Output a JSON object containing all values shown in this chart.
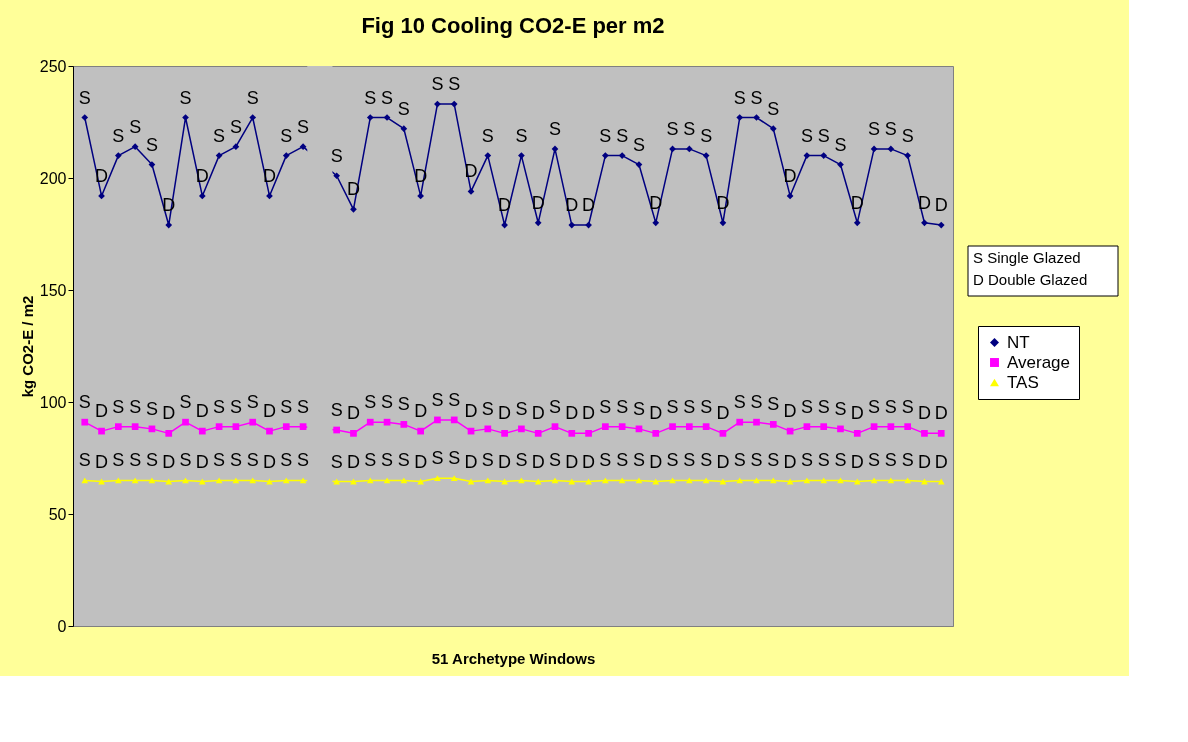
{
  "chart_data": {
    "type": "line",
    "title": "Fig 10 Cooling CO2-E per m2",
    "xlabel": "51 Archetype Windows",
    "ylabel": "kg CO2-E / m2",
    "categories": [
      null,
      null,
      null,
      null,
      null,
      null,
      null,
      null,
      null,
      null,
      null,
      null,
      null,
      null,
      null,
      null,
      null,
      null,
      null,
      null,
      null,
      null,
      null,
      null,
      null,
      null,
      null,
      null,
      null,
      null,
      null,
      null,
      null,
      null,
      null,
      null,
      null,
      null,
      null,
      null,
      null,
      null,
      null,
      null,
      null,
      null,
      null,
      null,
      null,
      null,
      null,
      null
    ],
    "ylim": [
      0,
      250
    ],
    "yticks": [
      0,
      50,
      100,
      150,
      200,
      250
    ],
    "grid": false,
    "legend": "right",
    "tick_labels": "y",
    "annotations": [
      "S  Single Glazed",
      "D Double Glazed"
    ],
    "series": [
      {
        "name": "NT",
        "color": "#000080",
        "marker": "diamond",
        "values": [
          227,
          192,
          210,
          214,
          206,
          179,
          227,
          192,
          210,
          214,
          227,
          192,
          210,
          214,
          null,
          201,
          186,
          227,
          227,
          222,
          192,
          233,
          233,
          194,
          210,
          179,
          210,
          180,
          213,
          179,
          179,
          210,
          210,
          206,
          180,
          213,
          213,
          210,
          180,
          227,
          227,
          222,
          192,
          210,
          210,
          206,
          180,
          213,
          213,
          210,
          180,
          179
        ],
        "value_labels": [
          "S",
          "D",
          "S",
          "S",
          "S",
          "D",
          "S",
          "D",
          "S",
          "S",
          "S",
          "D",
          "S",
          "S",
          null,
          "S",
          "D",
          "S",
          "S",
          "S",
          "D",
          "S",
          "S",
          "D",
          "S",
          "D",
          "S",
          "D",
          "S",
          "D",
          "D",
          "S",
          "S",
          "S",
          "D",
          "S",
          "S",
          "S",
          "D",
          "S",
          "S",
          "S",
          "D",
          "S",
          "S",
          "S",
          "D",
          "S",
          "S",
          "S",
          "D",
          "D"
        ]
      },
      {
        "name": "Average",
        "color": "#ff00ff",
        "marker": "square",
        "values": [
          91,
          87,
          89,
          89,
          88,
          86,
          91,
          87,
          89,
          89,
          91,
          87,
          89,
          89,
          null,
          87.5,
          86,
          91,
          91,
          90,
          87,
          92,
          92,
          87,
          88,
          86,
          88,
          86,
          89,
          86,
          86,
          89,
          89,
          88,
          86,
          89,
          89,
          89,
          86,
          91,
          91,
          90,
          87,
          89,
          89,
          88,
          86,
          89,
          89,
          89,
          86,
          86
        ],
        "value_labels": [
          "S",
          "D",
          "S",
          "S",
          "S",
          "D",
          "S",
          "D",
          "S",
          "S",
          "S",
          "D",
          "S",
          "S",
          null,
          "S",
          "D",
          "S",
          "S",
          "S",
          "D",
          "S",
          "S",
          "D",
          "S",
          "D",
          "S",
          "D",
          "S",
          "D",
          "D",
          "S",
          "S",
          "S",
          "D",
          "S",
          "S",
          "S",
          "D",
          "S",
          "S",
          "S",
          "D",
          "S",
          "S",
          "S",
          "D",
          "S",
          "S",
          "S",
          "D",
          "D"
        ]
      },
      {
        "name": "TAS",
        "color": "#ffff00",
        "marker": "triangle",
        "values": [
          65,
          64.5,
          65,
          65,
          65,
          64.5,
          65,
          64.5,
          65,
          65,
          65,
          64.5,
          65,
          65,
          null,
          64.5,
          64.5,
          65,
          65,
          65,
          64.5,
          66,
          66,
          64.5,
          65,
          64.5,
          65,
          64.5,
          65,
          64.5,
          64.5,
          65,
          65,
          65,
          64.5,
          65,
          65,
          65,
          64.5,
          65,
          65,
          65,
          64.5,
          65,
          65,
          65,
          64.5,
          65,
          65,
          65,
          64.5,
          64.5
        ],
        "value_labels": [
          "S",
          "D",
          "S",
          "S",
          "S",
          "D",
          "S",
          "D",
          "S",
          "S",
          "S",
          "D",
          "S",
          "S",
          null,
          "S",
          "D",
          "S",
          "S",
          "S",
          "D",
          "S",
          "S",
          "D",
          "S",
          "D",
          "S",
          "D",
          "S",
          "D",
          "D",
          "S",
          "S",
          "S",
          "D",
          "S",
          "S",
          "S",
          "D",
          "S",
          "S",
          "S",
          "D",
          "S",
          "S",
          "S",
          "D",
          "S",
          "S",
          "S",
          "D",
          "D"
        ]
      }
    ]
  }
}
